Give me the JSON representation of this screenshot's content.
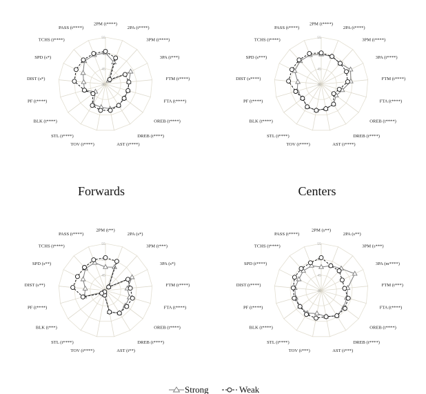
{
  "chart_data": [
    {
      "type": "radar",
      "title": "",
      "rlim": [
        40,
        55
      ],
      "rticks": [
        "40",
        "45",
        "50",
        "55"
      ],
      "axes": [
        "2PM (t****)",
        "2PA (t****)",
        "3PM (t****)",
        "3PA (t***)",
        "FTM (t****)",
        "FTA (t****)",
        "OREB (t****)",
        "DREB (t****)",
        "AST (t****)",
        "TOV (t****)",
        "STL (t****)",
        "BLK (t****)",
        "PF (t****)",
        "DIST (s*)",
        "SPD (s*)",
        "TCHS (t****)",
        "PASS (t****)"
      ],
      "series": [
        {
          "name": "Strong",
          "values": [
            50,
            47.5,
            41.5,
            49,
            47.5,
            47.5,
            47.5,
            48,
            48,
            47.5,
            47.5,
            44,
            47,
            47,
            48,
            50,
            50
          ]
        },
        {
          "name": "Weak",
          "values": [
            50.5,
            49,
            42,
            47,
            47.5,
            47.5,
            47.5,
            48,
            48.5,
            48.5,
            48,
            45,
            47,
            50,
            50.5,
            50.5,
            50.5
          ]
        }
      ]
    },
    {
      "type": "radar",
      "title": "",
      "rlim": [
        40,
        55
      ],
      "rticks": [
        "40",
        "45",
        "50",
        "55"
      ],
      "axes": [
        "2PM (t****)",
        "2PA (t****)",
        "3PM (t****)",
        "3PA (t****)",
        "FTM (t****)",
        "FTA (t****)",
        "OREB (t****)",
        "DREB (t****)",
        "AST (t****)",
        "TOV (t****)",
        "STL (t****)",
        "BLK (t****)",
        "PF (t****)",
        "DIST (s****)",
        "SPD (s***)",
        "TCHS (t****)",
        "PASS (t****)"
      ],
      "series": [
        {
          "name": "Strong",
          "values": [
            49.5,
            49.5,
            49,
            50.5,
            49.5,
            47,
            46,
            47.5,
            48,
            48.5,
            48.5,
            47.5,
            48,
            47.5,
            49.5,
            50,
            50
          ]
        },
        {
          "name": "Weak",
          "values": [
            50,
            49.5,
            49,
            49,
            48.5,
            46,
            45,
            47.5,
            48,
            48.5,
            48.5,
            47.5,
            48.5,
            50.5,
            50.5,
            50.5,
            50.5
          ]
        }
      ]
    },
    {
      "type": "radar",
      "title": "Forwards",
      "rlim": [
        40,
        55
      ],
      "rticks": [
        "40",
        "45",
        "50",
        "55"
      ],
      "axes": [
        "2PM (t**)",
        "2PA (s*)",
        "3PM (t***)",
        "3PA (s*)",
        "FTM (t****)",
        "FTA (t****)",
        "OREB (t****)",
        "DREB (t****)",
        "AST (t**)",
        "TOV (t****)",
        "STL (t****)",
        "BLK (t***)",
        "PF (t****)",
        "DIST (s**)",
        "SPD (s**)",
        "TCHS (t****)",
        "PASS (t****)"
      ],
      "series": [
        {
          "name": "Strong",
          "values": [
            47.5,
            48,
            41.5,
            49.5,
            47,
            48,
            48,
            48.5,
            47,
            41.5,
            40.5,
            41,
            47,
            46.5,
            48,
            49.5,
            49.5
          ]
        },
        {
          "name": "Weak",
          "values": [
            50.5,
            50,
            41.5,
            48,
            48,
            49,
            48.5,
            48.5,
            47,
            41.5,
            40.5,
            41.5,
            47.5,
            50.5,
            50,
            50,
            50.5
          ]
        }
      ]
    },
    {
      "type": "radar",
      "title": "Centers",
      "rlim": [
        40,
        55
      ],
      "rticks": [
        "40",
        "45",
        "50",
        "55"
      ],
      "axes": [
        "2PM (s**)",
        "2PA (s**)",
        "3PM (s***)",
        "3PA (m****)",
        "FTM (t***)",
        "FTA (t****)",
        "OREB (t****)",
        "DREB (t****)",
        "AST (t***)",
        "TOV (t***)",
        "STL (t****)",
        "BLK (t****)",
        "PF (t****)",
        "DIST (t****)",
        "SPD (t****)",
        "TCHS (t****)",
        "PASS (t****)"
      ],
      "series": [
        {
          "name": "Strong",
          "values": [
            47.5,
            48.5,
            49.5,
            52,
            48.5,
            48.5,
            49,
            49.5,
            48.5,
            47.5,
            48.5,
            48.5,
            48.5,
            48.5,
            48,
            48.5,
            48.5
          ]
        },
        {
          "name": "Weak",
          "values": [
            50.5,
            48.5,
            48.5,
            47.5,
            47.5,
            49,
            49.5,
            49.5,
            48.5,
            49,
            49,
            48.5,
            49,
            49,
            49.5,
            49.5,
            49.5
          ]
        }
      ]
    }
  ],
  "legend": {
    "items": [
      {
        "label": "Strong",
        "marker": "triangle",
        "line": "solid",
        "color": "#7a7a7a"
      },
      {
        "label": "Weak",
        "marker": "circle",
        "line": "dashed",
        "color": "#111111"
      }
    ]
  },
  "colors": {
    "grid": "#ddd9cc",
    "ring": "#e3dfd2",
    "strong": "#7a7a7a",
    "weak": "#111111"
  }
}
